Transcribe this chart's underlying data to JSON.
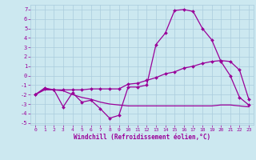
{
  "xlabel": "Windchill (Refroidissement éolien,°C)",
  "background_color": "#cce8f0",
  "grid_color": "#aaccdd",
  "line_color": "#990099",
  "ylim": [
    -5.2,
    7.5
  ],
  "xlim": [
    -0.5,
    23.5
  ],
  "yticks": [
    -5,
    -4,
    -3,
    -2,
    -1,
    0,
    1,
    2,
    3,
    4,
    5,
    6,
    7
  ],
  "xticks": [
    0,
    1,
    2,
    3,
    4,
    5,
    6,
    7,
    8,
    9,
    10,
    11,
    12,
    13,
    14,
    15,
    16,
    17,
    18,
    19,
    20,
    21,
    22,
    23
  ],
  "series1_x": [
    0,
    1,
    2,
    3,
    4,
    5,
    6,
    7,
    8,
    9,
    10,
    11,
    12,
    13,
    14,
    15,
    16,
    17,
    18,
    19,
    20,
    21,
    22,
    23
  ],
  "series1_y": [
    -2.0,
    -1.3,
    -1.5,
    -3.3,
    -1.8,
    -2.8,
    -2.6,
    -3.5,
    -4.5,
    -4.2,
    -1.2,
    -1.2,
    -1.0,
    3.3,
    4.5,
    6.9,
    7.0,
    6.8,
    5.0,
    3.8,
    1.5,
    0.0,
    -2.3,
    -3.1
  ],
  "series2_x": [
    0,
    1,
    2,
    3,
    4,
    5,
    6,
    7,
    8,
    9,
    10,
    11,
    12,
    13,
    14,
    15,
    16,
    17,
    18,
    19,
    20,
    21,
    22,
    23
  ],
  "series2_y": [
    -2.0,
    -1.4,
    -1.5,
    -1.5,
    -1.5,
    -1.5,
    -1.4,
    -1.4,
    -1.4,
    -1.4,
    -0.9,
    -0.8,
    -0.5,
    -0.2,
    0.2,
    0.4,
    0.8,
    1.0,
    1.3,
    1.5,
    1.6,
    1.5,
    0.6,
    -2.5
  ],
  "series3_x": [
    0,
    1,
    2,
    3,
    4,
    5,
    6,
    7,
    8,
    9,
    10,
    11,
    12,
    13,
    14,
    15,
    16,
    17,
    18,
    19,
    20,
    21,
    22,
    23
  ],
  "series3_y": [
    -2.0,
    -1.5,
    -1.5,
    -1.6,
    -2.0,
    -2.3,
    -2.5,
    -2.8,
    -3.0,
    -3.1,
    -3.2,
    -3.2,
    -3.2,
    -3.2,
    -3.2,
    -3.2,
    -3.2,
    -3.2,
    -3.2,
    -3.2,
    -3.1,
    -3.1,
    -3.2,
    -3.3
  ]
}
